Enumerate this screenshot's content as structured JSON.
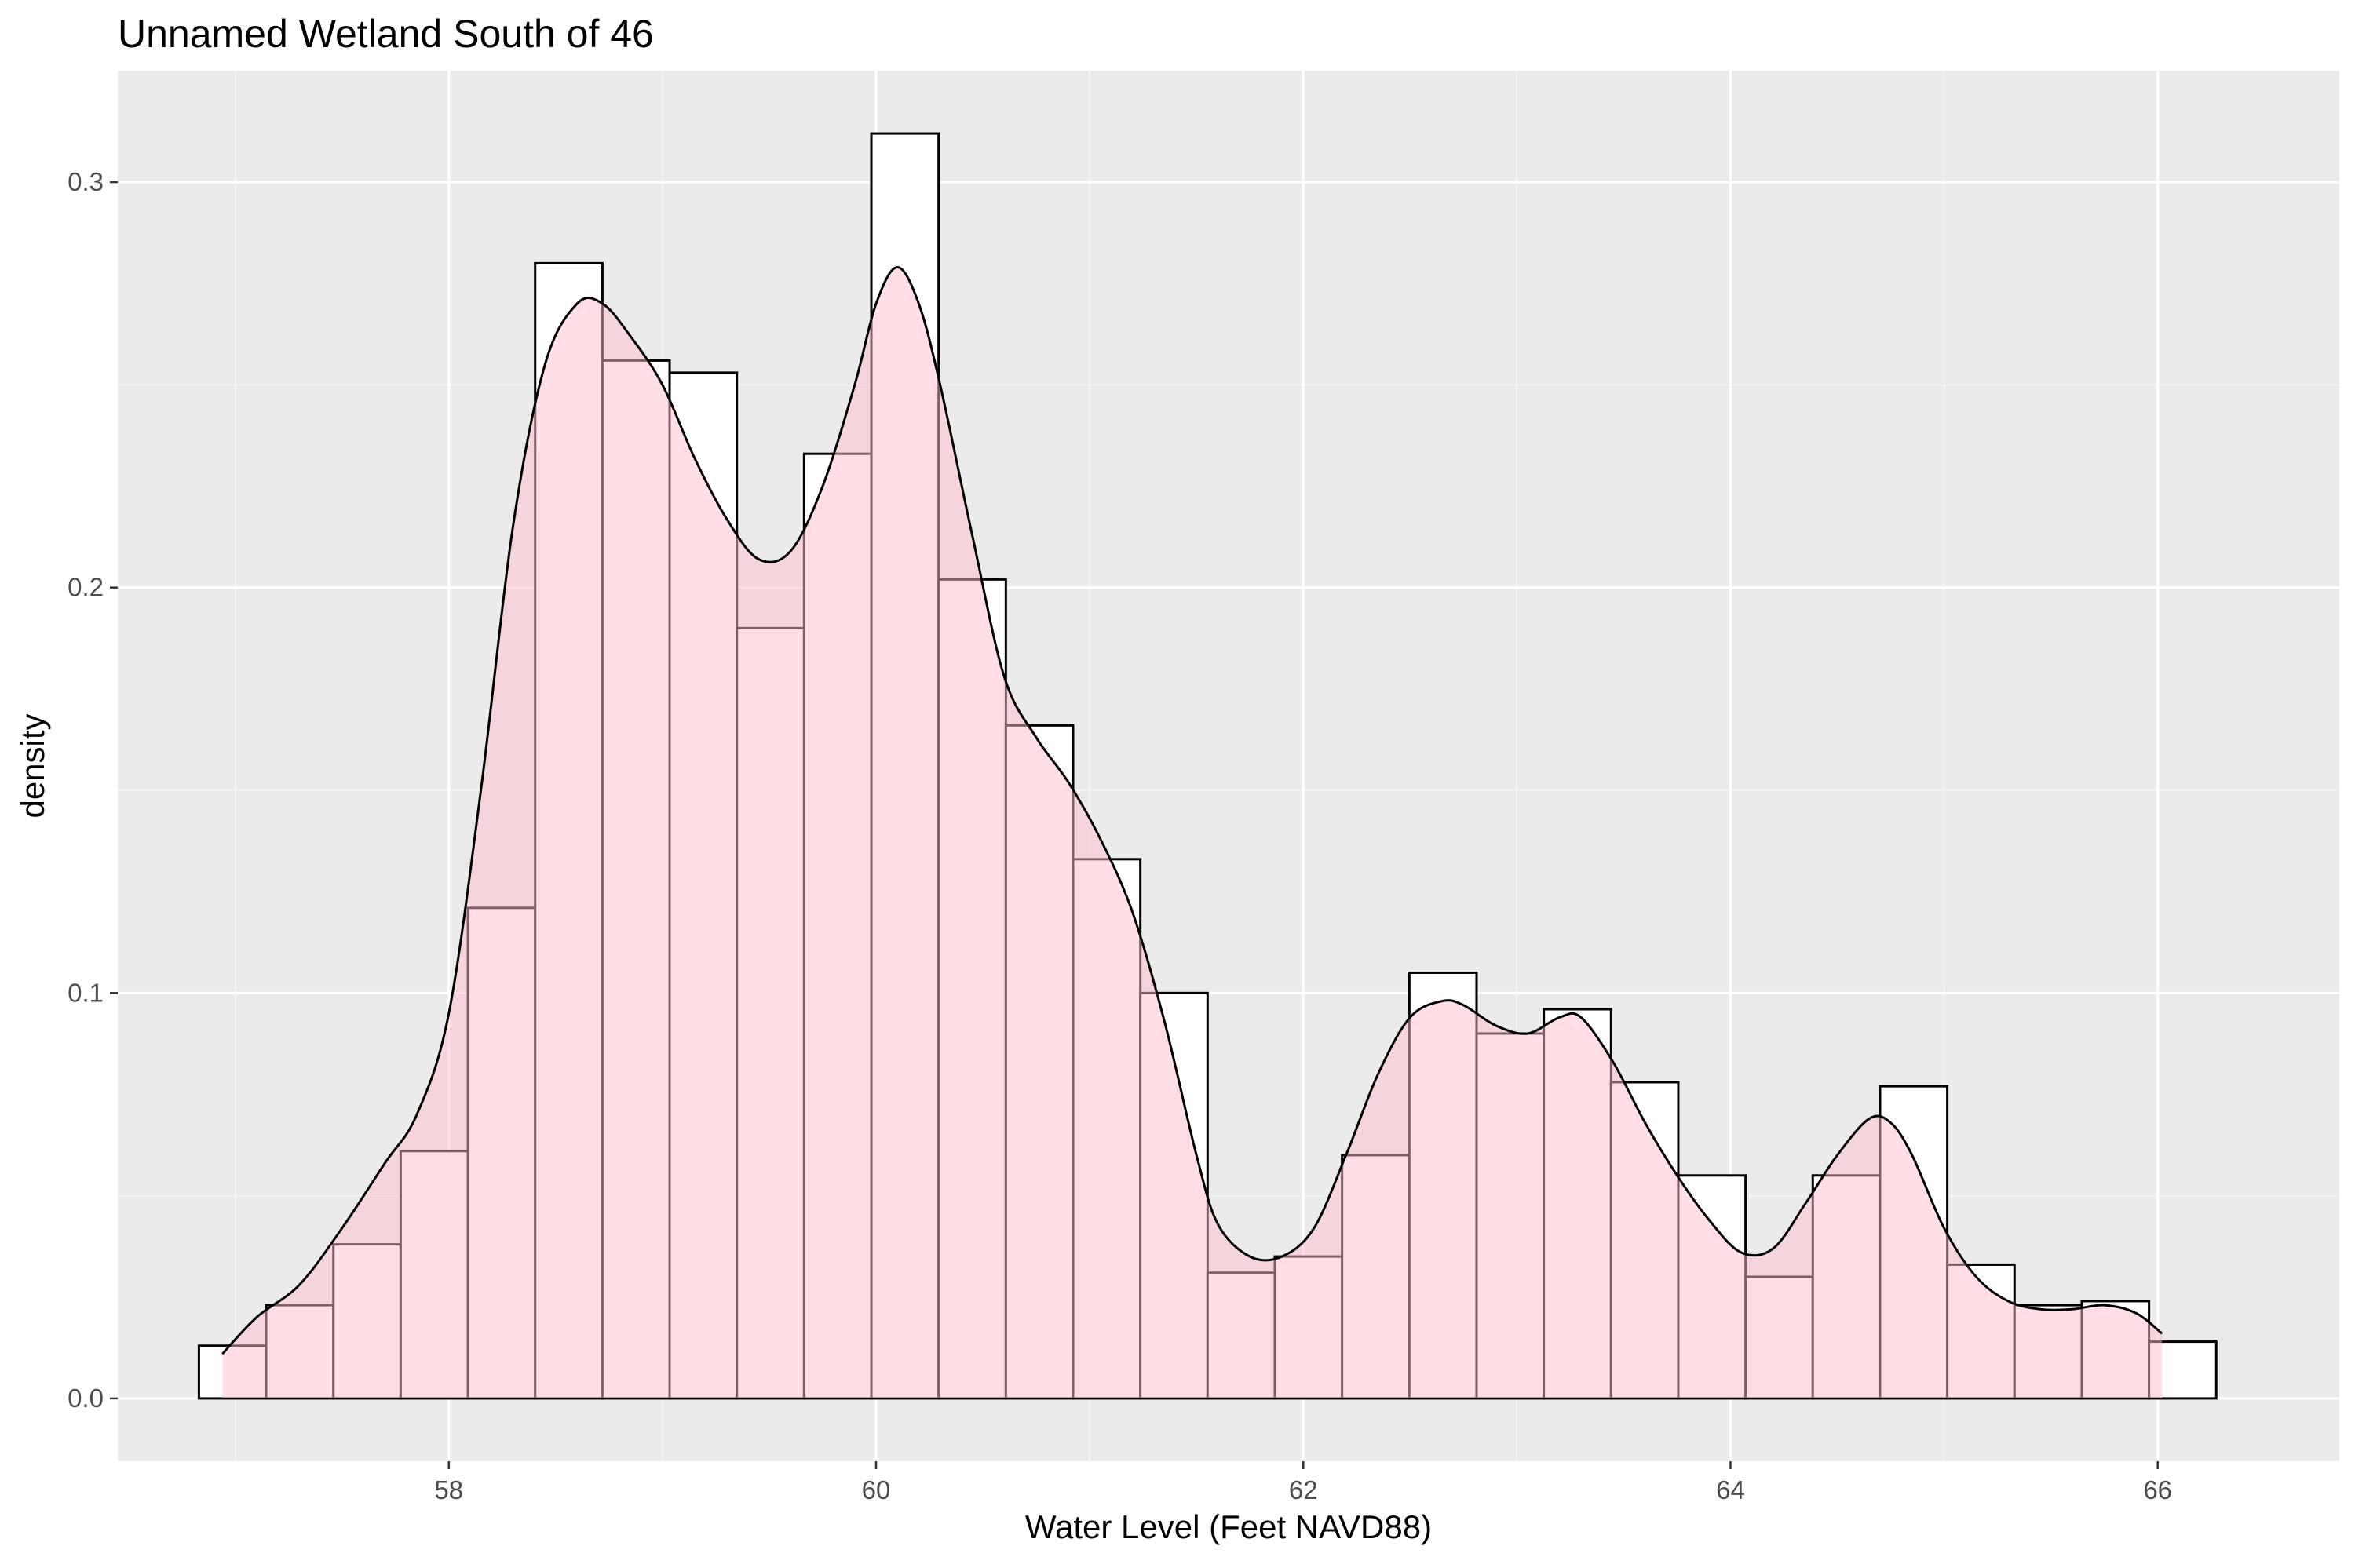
{
  "chart_data": {
    "type": "bar",
    "title": "Unnamed Wetland South of 46",
    "xlabel": "Water Level (Feet NAVD88)",
    "ylabel": "density",
    "xlim": [
      56.45,
      66.85
    ],
    "ylim": [
      -0.0155,
      0.3275
    ],
    "x_ticks": [
      58,
      60,
      62,
      64,
      66
    ],
    "y_ticks": [
      0.0,
      0.1,
      0.2,
      0.3
    ],
    "x_tick_labels": [
      "58",
      "60",
      "62",
      "64",
      "66"
    ],
    "y_tick_labels": [
      "0.0",
      "0.1",
      "0.2",
      "0.3"
    ],
    "x_minor_ticks": [
      57,
      59,
      61,
      63,
      65
    ],
    "y_minor_ticks": [
      0.05,
      0.15,
      0.25
    ],
    "grid": true,
    "legend": "none",
    "histogram": {
      "bin_width": 0.3148,
      "x_start": 56.83,
      "values": [
        0.013,
        0.023,
        0.038,
        0.061,
        0.121,
        0.28,
        0.256,
        0.253,
        0.19,
        0.233,
        0.312,
        0.202,
        0.166,
        0.133,
        0.1,
        0.031,
        0.035,
        0.06,
        0.105,
        0.09,
        0.096,
        0.078,
        0.055,
        0.03,
        0.055,
        0.077,
        0.033,
        0.023,
        0.024,
        0.014
      ],
      "fill": "#ffffff",
      "stroke": "#000000"
    },
    "density": {
      "x": [
        56.94,
        57.1,
        57.3,
        57.5,
        57.7,
        57.85,
        58.0,
        58.15,
        58.3,
        58.45,
        58.6,
        58.72,
        58.85,
        59.0,
        59.15,
        59.3,
        59.45,
        59.6,
        59.75,
        59.9,
        60.0,
        60.1,
        60.2,
        60.3,
        60.45,
        60.6,
        60.75,
        60.9,
        61.05,
        61.2,
        61.35,
        61.5,
        61.6,
        61.75,
        61.9,
        62.05,
        62.2,
        62.35,
        62.5,
        62.65,
        62.75,
        62.9,
        63.05,
        63.2,
        63.3,
        63.45,
        63.6,
        63.75,
        63.9,
        64.05,
        64.2,
        64.35,
        64.5,
        64.65,
        64.75,
        64.85,
        65.0,
        65.15,
        65.3,
        65.45,
        65.6,
        65.75,
        65.9,
        66.02
      ],
      "y": [
        0.011,
        0.02,
        0.028,
        0.042,
        0.058,
        0.07,
        0.095,
        0.15,
        0.215,
        0.255,
        0.27,
        0.27,
        0.262,
        0.25,
        0.232,
        0.217,
        0.207,
        0.209,
        0.225,
        0.25,
        0.27,
        0.279,
        0.27,
        0.25,
        0.213,
        0.178,
        0.163,
        0.152,
        0.138,
        0.12,
        0.093,
        0.06,
        0.043,
        0.035,
        0.035,
        0.042,
        0.06,
        0.08,
        0.094,
        0.098,
        0.097,
        0.092,
        0.09,
        0.094,
        0.094,
        0.083,
        0.068,
        0.055,
        0.044,
        0.036,
        0.037,
        0.048,
        0.06,
        0.069,
        0.068,
        0.06,
        0.042,
        0.03,
        0.024,
        0.022,
        0.022,
        0.023,
        0.021,
        0.016
      ],
      "fill": "#ffc0cb",
      "fill_opacity": 0.5,
      "stroke": "#000000"
    },
    "colors": {
      "panel_background": "#ebebeb",
      "grid_major": "#ffffff",
      "grid_minor": "#f5f5f5",
      "tick_mark": "#333333",
      "tick_label": "#4d4d4d"
    }
  }
}
